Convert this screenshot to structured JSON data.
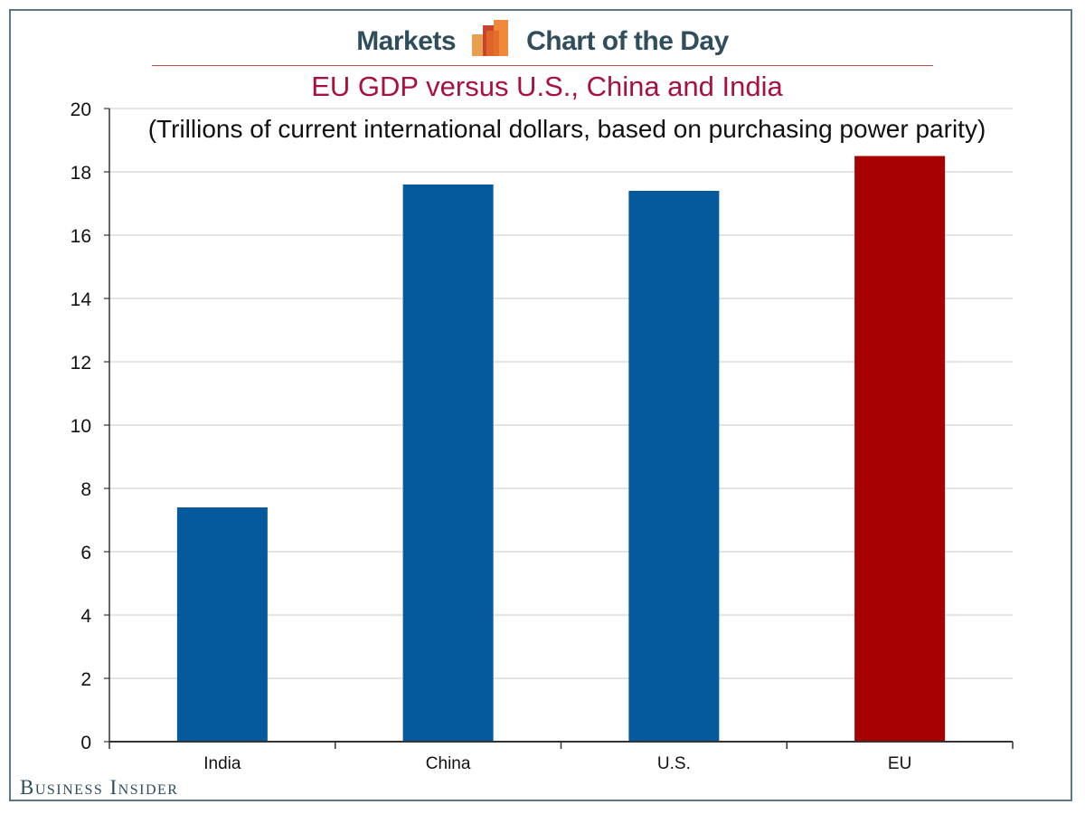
{
  "header": {
    "left_label": "Markets",
    "right_label": "Chart of the Day",
    "logo_icon": "bar-chart-logo-icon"
  },
  "footer": {
    "brand": "Business Insider"
  },
  "colors": {
    "bar_default": "#045a9c",
    "bar_highlight": "#a70000",
    "title": "#a8113e",
    "grid": "#d4d4d4",
    "brand_text": "#2f4d5a"
  },
  "chart_data": {
    "type": "bar",
    "title": "EU GDP versus U.S., China and India",
    "subtitle": "(Trillions of current international dollars, based on purchasing power parity)",
    "xlabel": "",
    "ylabel": "",
    "categories": [
      "India",
      "China",
      "U.S.",
      "EU"
    ],
    "values": [
      7.4,
      17.6,
      17.4,
      18.5
    ],
    "highlight": [
      "EU"
    ],
    "ylim": [
      0,
      20
    ],
    "yticks": [
      0,
      2,
      4,
      6,
      8,
      10,
      12,
      14,
      16,
      18,
      20
    ],
    "grid": true,
    "legend": "none"
  }
}
